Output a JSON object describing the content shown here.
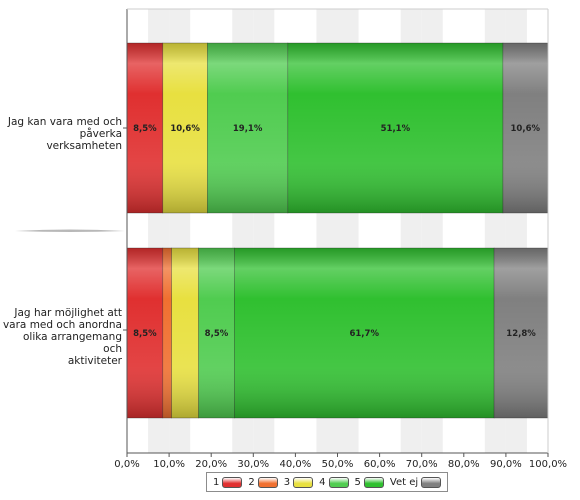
{
  "chart_data": {
    "type": "bar",
    "orientation": "horizontal",
    "stacked": true,
    "categories": [
      "Jag kan vara med och påverka verksamheten",
      "Jag har möjlighet att vara med och anordna olika arrangemang och aktiviteter"
    ],
    "category_lines": [
      [
        "Jag kan vara med och",
        "påverka verksamheten"
      ],
      [
        "Jag har möjlighet att",
        "vara med och anordna",
        "olika arrangemang och",
        "aktiviteter"
      ]
    ],
    "series": [
      {
        "name": "1",
        "color": "#e03030",
        "values": [
          8.5,
          8.5
        ]
      },
      {
        "name": "2",
        "color": "#f07030",
        "values": [
          0,
          2.1
        ]
      },
      {
        "name": "3",
        "color": "#e8e040",
        "values": [
          10.6,
          6.4
        ]
      },
      {
        "name": "4",
        "color": "#50cc50",
        "values": [
          19.1,
          8.5
        ]
      },
      {
        "name": "5",
        "color": "#30c030",
        "values": [
          51.1,
          61.7
        ]
      },
      {
        "name": "Vet ej",
        "color": "#808080",
        "values": [
          10.6,
          12.8
        ]
      }
    ],
    "data_labels": [
      [
        "8,5%",
        "",
        "10,6%",
        "19,1%",
        "51,1%",
        "10,6%"
      ],
      [
        "8,5%",
        "",
        "",
        "8,5%",
        "61,7%",
        "12,8%"
      ]
    ],
    "x_ticks": [
      "0,0%",
      "10,0%",
      "20,0%",
      "30,0%",
      "40,0%",
      "50,0%",
      "60,0%",
      "70,0%",
      "80,0%",
      "90,0%",
      "100,0%"
    ],
    "xlim": [
      0,
      100
    ],
    "legend_position": "bottom",
    "grid": "alternating column bands"
  }
}
